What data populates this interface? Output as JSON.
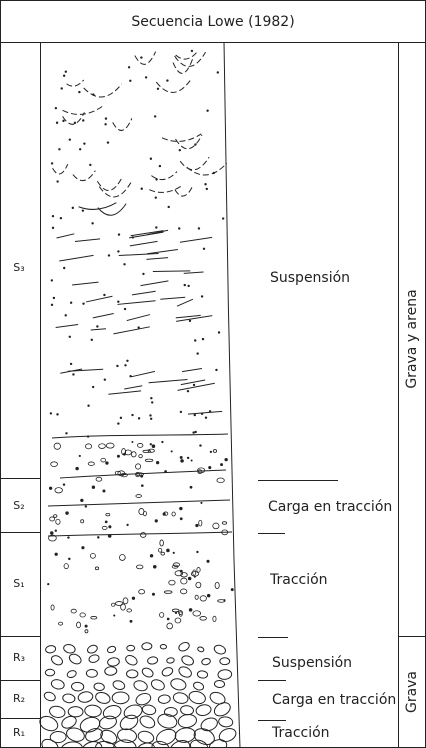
{
  "header": {
    "title": "Secuencia Lowe (1982)"
  },
  "left_column": {
    "labels": [
      "S₃",
      "S₂",
      "S₁",
      "R₃",
      "R₂",
      "R₁"
    ]
  },
  "annotations": [
    "Suspensión",
    "Carga en tracción",
    "Tracción",
    "Suspensión",
    "Carga en tracción",
    "Tracción"
  ],
  "right_column": {
    "labels": [
      "Grava y arena",
      "Grava"
    ]
  }
}
